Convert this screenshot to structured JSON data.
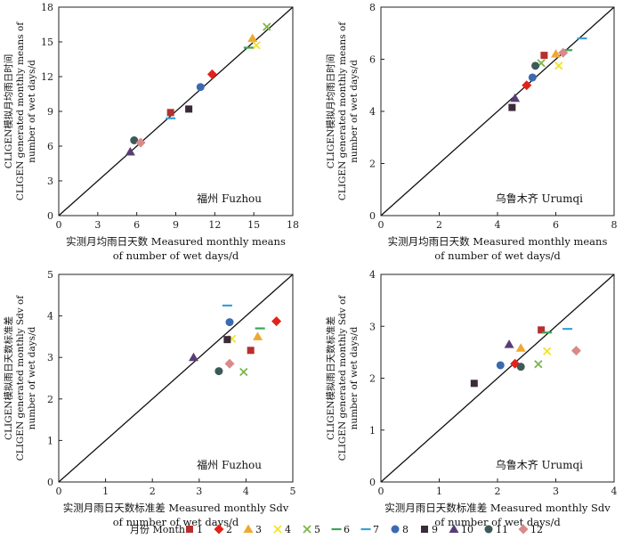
{
  "legend": {
    "title": "月份 Month",
    "items": [
      {
        "label": "1",
        "marker": "square",
        "color": "#b5302e"
      },
      {
        "label": "2",
        "marker": "diamond",
        "color": "#e2231a"
      },
      {
        "label": "3",
        "marker": "triangle",
        "color": "#f0a830"
      },
      {
        "label": "4",
        "marker": "x",
        "color": "#f3e22a"
      },
      {
        "label": "5",
        "marker": "x",
        "color": "#7ab648"
      },
      {
        "label": "6",
        "marker": "dash",
        "color": "#3da557"
      },
      {
        "label": "7",
        "marker": "dash",
        "color": "#3aa0d8"
      },
      {
        "label": "8",
        "marker": "circle",
        "color": "#3c6ab0"
      },
      {
        "label": "9",
        "marker": "square",
        "color": "#3b2a3a"
      },
      {
        "label": "10",
        "marker": "triangle",
        "color": "#5a3d74"
      },
      {
        "label": "11",
        "marker": "circle",
        "color": "#3d5a5a"
      },
      {
        "label": "12",
        "marker": "diamond",
        "color": "#d88a8a"
      }
    ]
  },
  "chart_data": [
    {
      "type": "scatter",
      "site": "福州 Fuzhou",
      "ylabel": [
        "CLIGEN模拟月均雨日时间",
        "CLIGEN generated monthly means of",
        "number of wet days/d"
      ],
      "xlabel": [
        "实测月均雨日天数 Measured  monthly means",
        "of number of  wet days/d"
      ],
      "xlim": [
        0,
        18
      ],
      "ylim": [
        0,
        18
      ],
      "xticks": [
        0,
        3,
        6,
        9,
        12,
        15,
        18
      ],
      "yticks": [
        0,
        3,
        6,
        9,
        12,
        15,
        18
      ],
      "tick_labels_x": [
        "0",
        "3",
        "6",
        "9",
        "12",
        "15",
        "18"
      ],
      "tick_labels_y": [
        "0",
        "3",
        "6",
        "9",
        "12",
        "15",
        "18"
      ],
      "one_to_one_line": true,
      "points": [
        {
          "month": 1,
          "x": 8.6,
          "y": 8.9
        },
        {
          "month": 2,
          "x": 11.8,
          "y": 12.2
        },
        {
          "month": 3,
          "x": 14.9,
          "y": 15.3
        },
        {
          "month": 4,
          "x": 15.2,
          "y": 14.7
        },
        {
          "month": 5,
          "x": 16.0,
          "y": 16.3
        },
        {
          "month": 6,
          "x": 14.6,
          "y": 14.5
        },
        {
          "month": 7,
          "x": 8.6,
          "y": 8.4
        },
        {
          "month": 8,
          "x": 10.9,
          "y": 11.1
        },
        {
          "month": 9,
          "x": 10.0,
          "y": 9.2
        },
        {
          "month": 10,
          "x": 5.5,
          "y": 5.5
        },
        {
          "month": 11,
          "x": 5.8,
          "y": 6.5
        },
        {
          "month": 12,
          "x": 6.3,
          "y": 6.3
        }
      ]
    },
    {
      "type": "scatter",
      "site": "乌鲁木齐 Urumqi",
      "ylabel": [
        "CLIGEN模拟月均雨日时间",
        "CLIGEN generated monthly means of",
        "number of wet days/d"
      ],
      "xlabel": [
        "实测月均雨日天数 Measured  monthly means",
        "of number of  wet days/d"
      ],
      "xlim": [
        0,
        8
      ],
      "ylim": [
        0,
        8
      ],
      "xticks": [
        0,
        2,
        4,
        6,
        8
      ],
      "yticks": [
        0,
        2,
        4,
        6,
        8
      ],
      "tick_labels_x": [
        "0",
        "2",
        "4",
        "6",
        "8"
      ],
      "tick_labels_y": [
        "0",
        "2",
        "4",
        "6",
        "8"
      ],
      "one_to_one_line": true,
      "points": [
        {
          "month": 1,
          "x": 5.6,
          "y": 6.15
        },
        {
          "month": 2,
          "x": 5.0,
          "y": 5.0
        },
        {
          "month": 3,
          "x": 6.0,
          "y": 6.2
        },
        {
          "month": 4,
          "x": 6.1,
          "y": 5.75
        },
        {
          "month": 5,
          "x": 5.5,
          "y": 5.85
        },
        {
          "month": 6,
          "x": 6.4,
          "y": 6.35
        },
        {
          "month": 7,
          "x": 6.9,
          "y": 6.8
        },
        {
          "month": 8,
          "x": 5.2,
          "y": 5.3
        },
        {
          "month": 9,
          "x": 4.5,
          "y": 4.15
        },
        {
          "month": 10,
          "x": 4.6,
          "y": 4.5
        },
        {
          "month": 11,
          "x": 5.3,
          "y": 5.75
        },
        {
          "month": 12,
          "x": 6.25,
          "y": 6.25
        }
      ]
    },
    {
      "type": "scatter",
      "site": "福州 Fuzhou",
      "ylabel": [
        "CLIGEN模拟雨日天数标准差",
        "CLIGEN  generated monthly Sdv of",
        "number of wet days/d"
      ],
      "xlabel": [
        "实测月雨日天数标准差 Measured  monthly Sdv",
        "of number of wet days/d"
      ],
      "xlim": [
        0,
        5
      ],
      "ylim": [
        0,
        5
      ],
      "xticks": [
        0,
        1,
        2,
        3,
        4,
        5
      ],
      "yticks": [
        0,
        1,
        2,
        3,
        4,
        5
      ],
      "tick_labels_x": [
        "0",
        "1",
        "2",
        "3",
        "4",
        "5"
      ],
      "tick_labels_y": [
        "0",
        "1",
        "2",
        "3",
        "4",
        "5"
      ],
      "one_to_one_line": true,
      "points": [
        {
          "month": 1,
          "x": 4.1,
          "y": 3.17
        },
        {
          "month": 2,
          "x": 4.65,
          "y": 3.87
        },
        {
          "month": 3,
          "x": 4.25,
          "y": 3.5
        },
        {
          "month": 4,
          "x": 3.7,
          "y": 3.45
        },
        {
          "month": 5,
          "x": 3.95,
          "y": 2.65
        },
        {
          "month": 6,
          "x": 4.3,
          "y": 3.7
        },
        {
          "month": 7,
          "x": 3.6,
          "y": 4.25
        },
        {
          "month": 8,
          "x": 3.65,
          "y": 3.85
        },
        {
          "month": 9,
          "x": 3.6,
          "y": 3.43
        },
        {
          "month": 10,
          "x": 2.88,
          "y": 3.0
        },
        {
          "month": 11,
          "x": 3.42,
          "y": 2.67
        },
        {
          "month": 12,
          "x": 3.65,
          "y": 2.85
        }
      ]
    },
    {
      "type": "scatter",
      "site": "乌鲁木齐 Urumqi",
      "ylabel": [
        "CLIGEN模拟雨日天数标准差",
        "CLIGEN generated monthly Sdv of",
        "number of wet days/d"
      ],
      "xlabel": [
        "实测月雨日天数标准差 Measured  monthly Sdv",
        "of number of wet days/d"
      ],
      "xlim": [
        0,
        4
      ],
      "ylim": [
        0,
        4
      ],
      "xticks": [
        0,
        1,
        2,
        3,
        4
      ],
      "yticks": [
        0,
        1,
        2,
        3,
        4
      ],
      "tick_labels_x": [
        "0",
        "1",
        "2",
        "3",
        "4"
      ],
      "tick_labels_y": [
        "0",
        "1",
        "2",
        "3",
        "4"
      ],
      "one_to_one_line": true,
      "points": [
        {
          "month": 1,
          "x": 2.75,
          "y": 2.93
        },
        {
          "month": 2,
          "x": 2.3,
          "y": 2.28
        },
        {
          "month": 3,
          "x": 2.4,
          "y": 2.58
        },
        {
          "month": 4,
          "x": 2.85,
          "y": 2.52
        },
        {
          "month": 5,
          "x": 2.7,
          "y": 2.27
        },
        {
          "month": 6,
          "x": 2.85,
          "y": 2.88
        },
        {
          "month": 7,
          "x": 3.2,
          "y": 2.95
        },
        {
          "month": 8,
          "x": 2.05,
          "y": 2.25
        },
        {
          "month": 9,
          "x": 1.6,
          "y": 1.9
        },
        {
          "month": 10,
          "x": 2.2,
          "y": 2.65
        },
        {
          "month": 11,
          "x": 2.4,
          "y": 2.22
        },
        {
          "month": 12,
          "x": 3.35,
          "y": 2.53
        }
      ]
    }
  ]
}
